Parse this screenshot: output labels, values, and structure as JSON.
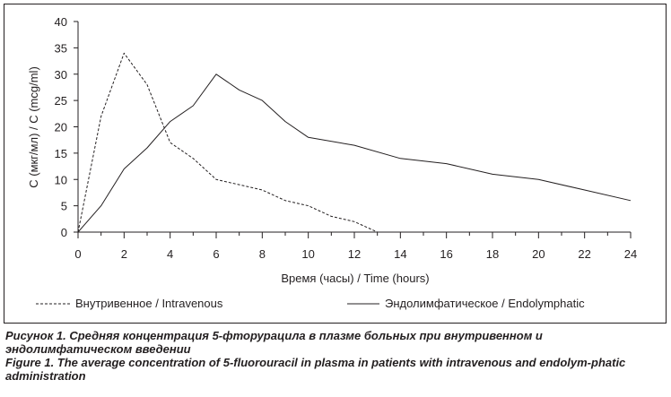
{
  "chart_data": {
    "type": "line",
    "xlabel": "Время (часы) / Time (hours)",
    "ylabel": "C (мкг/мл) / C (mcg/ml)",
    "xlim": [
      0,
      24
    ],
    "ylim": [
      0,
      40
    ],
    "x_ticks": [
      "0",
      "2",
      "4",
      "6",
      "8",
      "10",
      "12",
      "14",
      "16",
      "18",
      "20",
      "22",
      "24"
    ],
    "y_ticks": [
      "0",
      "5",
      "10",
      "15",
      "20",
      "25",
      "30",
      "35",
      "40"
    ],
    "grid": false,
    "legend_position": "bottom",
    "series": [
      {
        "name": "Внутривенное / Intravenous",
        "style": "dashed",
        "color": "#231f20",
        "x": [
          0,
          1,
          2,
          3,
          4,
          5,
          6,
          7,
          8,
          9,
          10,
          11,
          12,
          13
        ],
        "y": [
          0,
          22,
          34,
          28,
          17,
          14,
          10,
          9,
          8,
          6,
          5,
          3,
          2,
          0
        ]
      },
      {
        "name": "Эндолимфатическое / Endolymphatic",
        "style": "solid",
        "color": "#231f20",
        "x": [
          0,
          1,
          2,
          3,
          4,
          5,
          6,
          7,
          8,
          9,
          10,
          12,
          14,
          16,
          18,
          20,
          22,
          24
        ],
        "y": [
          0,
          5,
          12,
          16,
          21,
          24,
          30,
          27,
          25,
          21,
          18,
          16.5,
          14,
          13,
          11,
          10,
          8,
          6
        ]
      }
    ]
  },
  "caption": {
    "ru": "Рисунок 1. Средняя концентрация 5-фторурацила в плазме больных при внутривенном и эндолимфатическом введении",
    "en": "Figure 1. The average concentration of 5-fluorouracil in plasma in patients with intravenous and endolym-phatic administration"
  }
}
